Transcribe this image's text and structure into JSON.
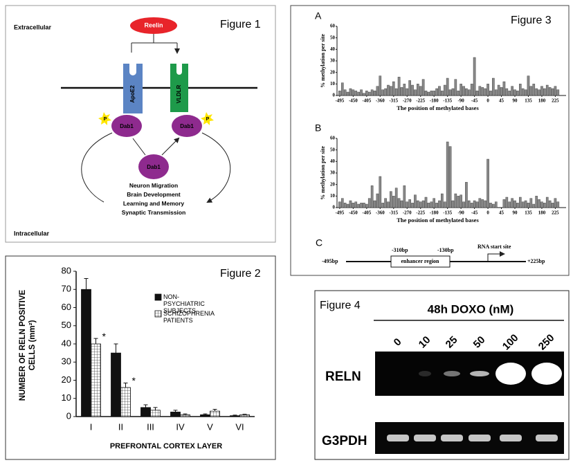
{
  "figure1": {
    "title": "Figure 1",
    "outside": "Extracellular",
    "inside": "Intracellular",
    "ligand": "Reelin",
    "receptors": [
      "ApoE2",
      "VLDLR"
    ],
    "phospho": [
      "P",
      "P"
    ],
    "adaptors": [
      "Dab1",
      "Dab1",
      "Dab1"
    ],
    "outcomes": [
      "Neuron Migration",
      "Brain Development",
      "Learning and Memory",
      "Synaptic Transmission"
    ]
  },
  "chart_data": [
    {
      "type": "bar",
      "title": "Figure 2",
      "y_label": "NUMBER OF RELN POSITIVE CELLS (mm²)",
      "x_label": "PREFRONTAL CORTEX LAYER",
      "categories": [
        "I",
        "II",
        "III",
        "IV",
        "V",
        "VI"
      ],
      "series": [
        {
          "name": "NON-PSYCHIATRIC SUBJECTS",
          "color": "#111111",
          "values": [
            70,
            35,
            5,
            2.5,
            1,
            0.5
          ],
          "errors": [
            6,
            5,
            1.5,
            1,
            0.5,
            0.3
          ]
        },
        {
          "name": "SCHIZOPHRENIA PATIENTS",
          "color": "#ffffff",
          "hatch": true,
          "values": [
            40,
            16,
            3.5,
            1,
            3,
            1
          ],
          "errors": [
            3,
            2.5,
            1.5,
            0.5,
            1,
            0.3
          ]
        }
      ],
      "annotations": [
        "*",
        "*"
      ],
      "ylim": [
        0,
        80
      ],
      "yticks": [
        0,
        10,
        20,
        30,
        40,
        50,
        60,
        70,
        80
      ]
    },
    {
      "type": "bar",
      "title": "Figure 3",
      "panel": "A",
      "y_label": "% methylation per site",
      "x_label": "The position of methylated bases",
      "color": "#888888",
      "x": [
        -495,
        -486,
        -477,
        -468,
        -459,
        -450,
        -441,
        -432,
        -423,
        -414,
        -405,
        -396,
        -387,
        -378,
        -369,
        -360,
        -351,
        -342,
        -333,
        -324,
        -315,
        -306,
        -297,
        -288,
        -279,
        -270,
        -261,
        -252,
        -243,
        -234,
        -225,
        -216,
        -207,
        -198,
        -189,
        -180,
        -171,
        -162,
        -153,
        -144,
        -135,
        -126,
        -117,
        -108,
        -99,
        -90,
        -81,
        -72,
        -63,
        -54,
        -45,
        -36,
        -27,
        -18,
        -9,
        0,
        9,
        18,
        27,
        36,
        45,
        54,
        63,
        72,
        81,
        90,
        99,
        108,
        117,
        126,
        135,
        144,
        153,
        162,
        171,
        180,
        189,
        198,
        207,
        216,
        225,
        234
      ],
      "values": [
        4,
        11,
        5,
        3,
        6,
        5,
        4,
        3,
        5,
        2,
        4,
        3,
        5,
        4,
        8,
        17,
        5,
        6,
        9,
        8,
        12,
        6,
        16,
        7,
        10,
        6,
        13,
        9,
        5,
        10,
        8,
        14,
        4,
        3,
        4,
        4,
        6,
        8,
        4,
        9,
        15,
        5,
        6,
        14,
        4,
        10,
        8,
        6,
        5,
        10,
        33,
        4,
        8,
        7,
        6,
        10,
        4,
        15,
        5,
        9,
        7,
        12,
        6,
        4,
        8,
        5,
        4,
        10,
        6,
        5,
        17,
        8,
        10,
        6,
        5,
        8,
        6,
        9,
        7,
        6,
        8,
        5
      ],
      "xlim": [
        -504,
        261
      ],
      "xticks": [
        -495,
        -450,
        -405,
        -360,
        -315,
        -270,
        -225,
        -180,
        -135,
        -90,
        -45,
        0,
        45,
        90,
        135,
        180,
        225
      ],
      "ylim": [
        0,
        60
      ],
      "yticks": [
        0,
        10,
        20,
        30,
        40,
        50,
        60
      ]
    },
    {
      "type": "bar",
      "panel": "B",
      "y_label": "% methylation per site",
      "x_label": "The position of methylated bases",
      "color": "#888888",
      "x": [
        -495,
        -486,
        -477,
        -468,
        -459,
        -450,
        -441,
        -432,
        -423,
        -414,
        -405,
        -396,
        -387,
        -378,
        -369,
        -360,
        -351,
        -342,
        -333,
        -324,
        -315,
        -306,
        -297,
        -288,
        -279,
        -270,
        -261,
        -252,
        -243,
        -234,
        -225,
        -216,
        -207,
        -198,
        -189,
        -180,
        -171,
        -162,
        -153,
        -144,
        -135,
        -126,
        -117,
        -108,
        -99,
        -90,
        -81,
        -72,
        -63,
        -54,
        -45,
        -36,
        -27,
        -18,
        -9,
        0,
        9,
        18,
        27,
        36,
        45,
        54,
        63,
        72,
        81,
        90,
        99,
        108,
        117,
        126,
        135,
        144,
        153,
        162,
        171,
        180,
        189,
        198,
        207,
        216,
        225,
        234
      ],
      "values": [
        5,
        8,
        4,
        3,
        6,
        4,
        5,
        3,
        4,
        4,
        3,
        8,
        19,
        6,
        12,
        27,
        4,
        8,
        5,
        14,
        10,
        17,
        8,
        6,
        19,
        5,
        7,
        4,
        11,
        6,
        5,
        6,
        9,
        4,
        5,
        8,
        4,
        6,
        12,
        5,
        57,
        53,
        6,
        12,
        10,
        11,
        5,
        22,
        6,
        4,
        6,
        5,
        8,
        7,
        6,
        42,
        4,
        3,
        5,
        0,
        0,
        7,
        9,
        5,
        8,
        6,
        4,
        9,
        5,
        6,
        4,
        8,
        3,
        10,
        7,
        5,
        4,
        9,
        6,
        4,
        8,
        5
      ],
      "xlim": [
        -504,
        261
      ],
      "xticks": [
        -495,
        -450,
        -405,
        -360,
        -315,
        -270,
        -225,
        -180,
        -135,
        -90,
        -45,
        0,
        45,
        90,
        135,
        180,
        225
      ],
      "ylim": [
        0,
        60
      ],
      "yticks": [
        0,
        10,
        20,
        30,
        40,
        50,
        60
      ]
    }
  ],
  "figure3c": {
    "panel": "C",
    "start": "-495bp",
    "end": "+225bp",
    "enhancer_start": "-310bp",
    "enhancer_end": "-130bp",
    "enhancer": "enhancer region",
    "tss": "RNA start site"
  },
  "figure4": {
    "title": "Figure 4",
    "treatment": "48h DOXO (nM)",
    "lanes": [
      "0",
      "10",
      "25",
      "50",
      "100",
      "250"
    ],
    "rows": [
      "RELN",
      "G3PDH"
    ]
  }
}
